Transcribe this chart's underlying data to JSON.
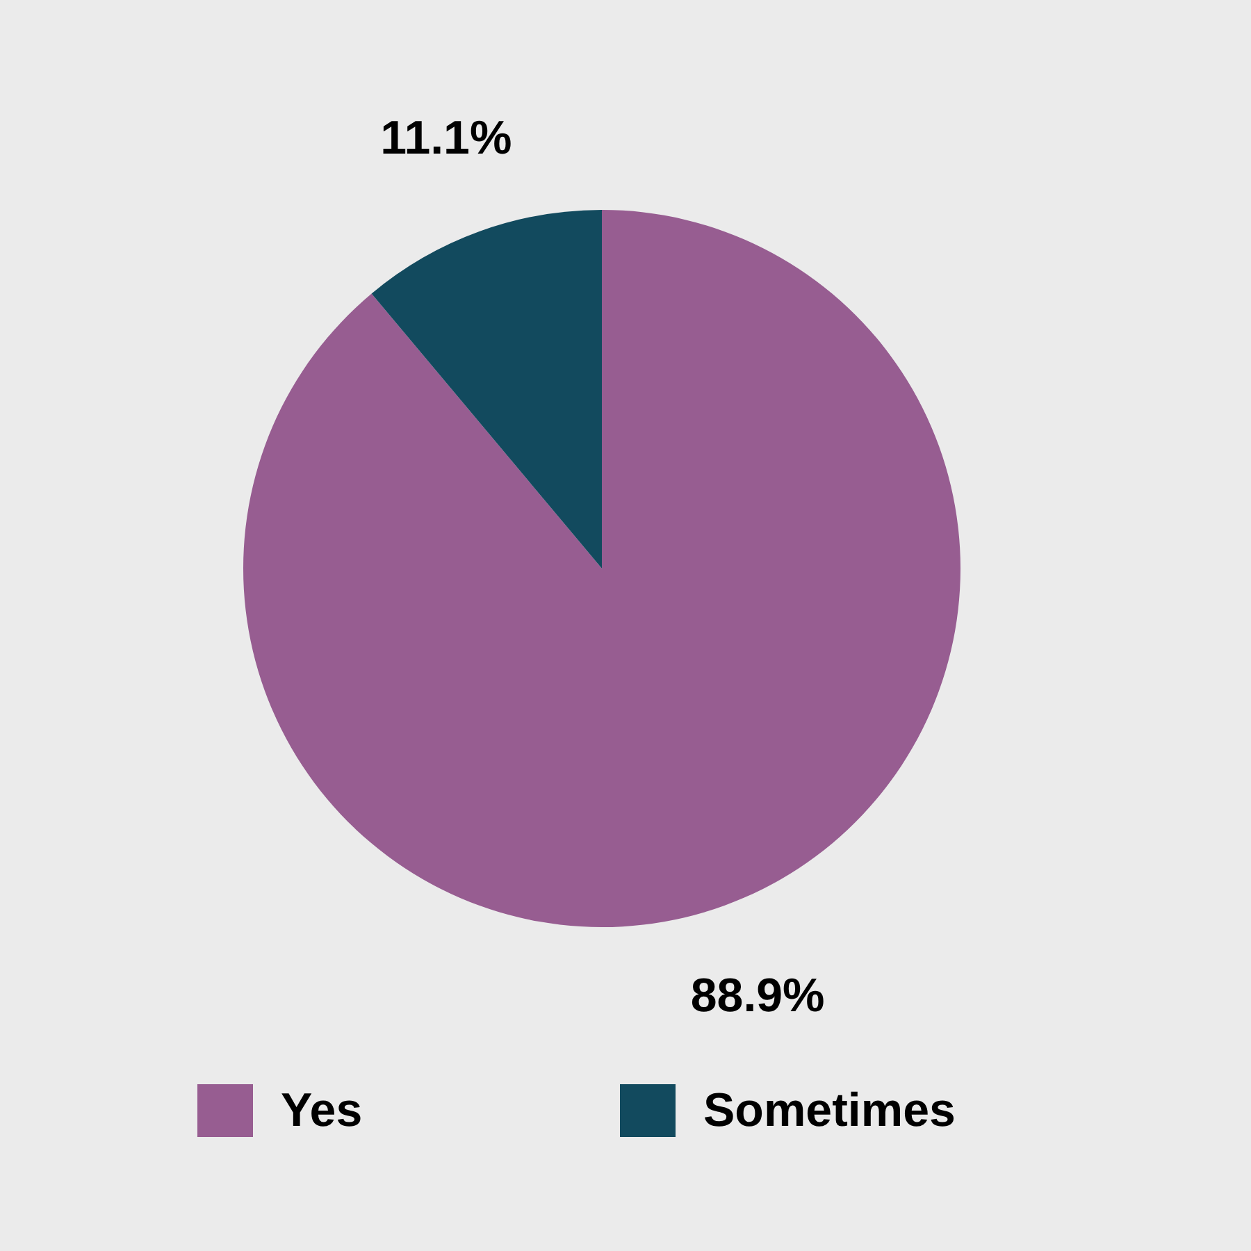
{
  "chart_data": {
    "type": "pie",
    "categories": [
      "Yes",
      "Sometimes"
    ],
    "values": [
      88.9,
      11.1
    ],
    "colors": [
      "#975d91",
      "#124a5e"
    ],
    "value_labels": [
      "88.9%",
      "11.1%"
    ],
    "legend": "bottom"
  }
}
